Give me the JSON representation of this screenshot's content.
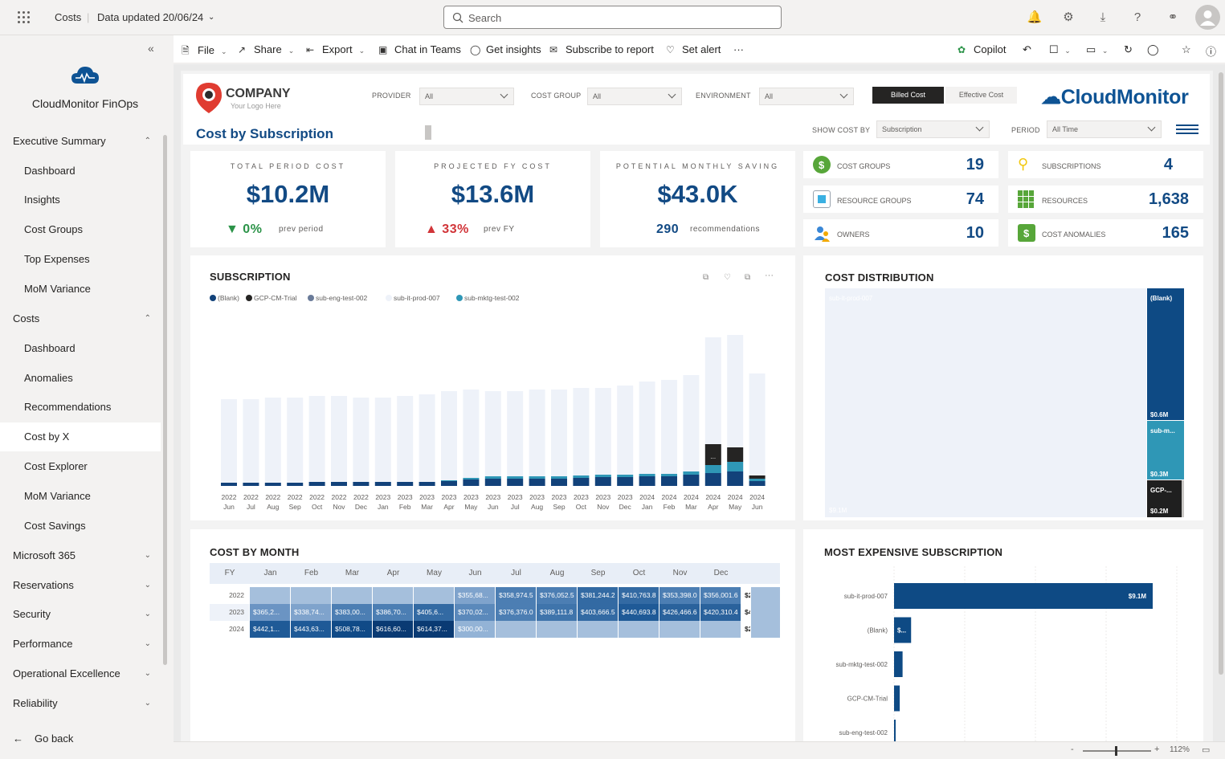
{
  "topbar": {
    "app": "Costs",
    "updated": "Data updated 20/06/24",
    "search_placeholder": "Search"
  },
  "sidebar": {
    "title": "CloudMonitor FinOps",
    "sections": [
      {
        "label": "Executive Summary",
        "items": [
          "Dashboard",
          "Insights",
          "Cost Groups",
          "Top Expenses",
          "MoM Variance"
        ]
      },
      {
        "label": "Costs",
        "items": [
          "Dashboard",
          "Anomalies",
          "Recommendations",
          "Cost by X",
          "Cost Explorer",
          "MoM Variance",
          "Cost Savings"
        ]
      }
    ],
    "collapsed": [
      "Microsoft 365",
      "Reservations",
      "Security",
      "Performance",
      "Operational Excellence",
      "Reliability"
    ],
    "go_back": "Go back"
  },
  "cmdbar": {
    "file": "File",
    "share": "Share",
    "export": "Export",
    "chat": "Chat in Teams",
    "insights": "Get insights",
    "subscribe": "Subscribe to report",
    "alert": "Set alert",
    "more": "···",
    "copilot": "Copilot"
  },
  "report": {
    "company": "COMPANY",
    "company_sub": "Your Logo Here",
    "heading": "Cost by Subscription",
    "filters": {
      "provider": "PROVIDER",
      "cost_group": "COST GROUP",
      "environment": "ENVIRONMENT",
      "all": "All",
      "show_cost_by": "SHOW COST BY",
      "show_value": "Subscription",
      "period": "PERIOD",
      "period_value": "All Time"
    },
    "toggle": {
      "billed": "Billed Cost",
      "effective": "Effective Cost"
    },
    "brand": "CloudMonitor",
    "kpis": [
      {
        "label": "TOTAL PERIOD COST",
        "value": "$10.2M",
        "change": "0%",
        "ref": "prev period",
        "dir": "down"
      },
      {
        "label": "PROJECTED FY COST",
        "value": "$13.6M",
        "change": "33%",
        "ref": "prev FY",
        "dir": "up"
      },
      {
        "label": "POTENTIAL MONTHLY SAVING",
        "value": "$43.0K",
        "change": "290",
        "ref": "recommendations",
        "dir": "none"
      }
    ],
    "tiles": [
      {
        "label": "COST GROUPS",
        "value": "19",
        "icon": "dollar-icon"
      },
      {
        "label": "SUBSCRIPTIONS",
        "value": "4",
        "icon": "key-icon"
      },
      {
        "label": "RESOURCE GROUPS",
        "value": "74",
        "icon": "cube-icon"
      },
      {
        "label": "RESOURCES",
        "value": "1,638",
        "icon": "grid-icon"
      },
      {
        "label": "OWNERS",
        "value": "10",
        "icon": "people-icon"
      },
      {
        "label": "COST ANOMALIES",
        "value": "165",
        "icon": "anomaly-icon"
      }
    ],
    "subscription_title": "SUBSCRIPTION",
    "legend": [
      {
        "name": "(Blank)",
        "color": "#12427a"
      },
      {
        "name": "GCP-CM-Trial",
        "color": "#252423"
      },
      {
        "name": "sub-eng-test-002",
        "color": "#6a7b99"
      },
      {
        "name": "sub-it-prod-007",
        "color": "#eef2f9"
      },
      {
        "name": "sub-mktg-test-002",
        "color": "#2f97b6"
      }
    ],
    "months": [
      [
        "2022",
        "Jun"
      ],
      [
        "2022",
        "Jul"
      ],
      [
        "2022",
        "Aug"
      ],
      [
        "2022",
        "Sep"
      ],
      [
        "2022",
        "Oct"
      ],
      [
        "2022",
        "Nov"
      ],
      [
        "2022",
        "Dec"
      ],
      [
        "2023",
        "Jan"
      ],
      [
        "2023",
        "Feb"
      ],
      [
        "2023",
        "Mar"
      ],
      [
        "2023",
        "Apr"
      ],
      [
        "2023",
        "May"
      ],
      [
        "2023",
        "Jun"
      ],
      [
        "2023",
        "Jul"
      ],
      [
        "2023",
        "Aug"
      ],
      [
        "2023",
        "Sep"
      ],
      [
        "2023",
        "Oct"
      ],
      [
        "2023",
        "Nov"
      ],
      [
        "2023",
        "Dec"
      ],
      [
        "2024",
        "Jan"
      ],
      [
        "2024",
        "Feb"
      ],
      [
        "2024",
        "Mar"
      ],
      [
        "2024",
        "Apr"
      ],
      [
        "2024",
        "May"
      ],
      [
        "2024",
        "Jun"
      ]
    ],
    "bar_tag": "...",
    "distribution_title": "COST DISTRIBUTION",
    "distribution": [
      {
        "name": "sub-it-prod-007",
        "value": "$9.1M"
      },
      {
        "name": "(Blank)",
        "value": "$0.6M"
      },
      {
        "name": "sub-m...",
        "value": "$0.3M"
      },
      {
        "name": "GCP-...",
        "value": "$0.2M"
      }
    ],
    "month_title": "COST BY MONTH",
    "month_headers": [
      "FY",
      "Jan",
      "Feb",
      "Mar",
      "Apr",
      "May",
      "Jun",
      "Jul",
      "Aug",
      "Sep",
      "Oct",
      "Nov",
      "Dec"
    ],
    "month_rows": [
      {
        "fy": "2022",
        "cells": [
          "",
          "",
          "",
          "",
          "",
          "$355,68...",
          "$358,974.5",
          "$376,052.5",
          "$381,244.2",
          "$410,763.8",
          "$353,398.0",
          "$356,001.6",
          "$2"
        ]
      },
      {
        "fy": "2023",
        "cells": [
          "$365,2...",
          "$338,74...",
          "$383,00...",
          "$386,70...",
          "$405,6...",
          "$370,02...",
          "$376,376.0",
          "$389,111.8",
          "$403,666.5",
          "$440,693.8",
          "$426,466.6",
          "$420,310.4",
          "$4"
        ]
      },
      {
        "fy": "2024",
        "cells": [
          "$442,1...",
          "$443,63...",
          "$508,78...",
          "$616,60...",
          "$614,37...",
          "$300,00...",
          "",
          "",
          "",
          "",
          "",
          "",
          "$2"
        ]
      }
    ],
    "expensive_title": "MOST EXPENSIVE SUBSCRIPTION",
    "expensive": [
      {
        "name": "sub-it-prod-007",
        "label": "$9.1M",
        "value": 9.1
      },
      {
        "name": "(Blank)",
        "label": "$...",
        "value": 0.6
      },
      {
        "name": "sub-mktg-test-002",
        "label": "",
        "value": 0.3
      },
      {
        "name": "GCP-CM-Trial",
        "label": "",
        "value": 0.2
      },
      {
        "name": "sub-eng-test-002",
        "label": "",
        "value": 0.05
      }
    ]
  },
  "status": {
    "zoom": "112%"
  }
}
